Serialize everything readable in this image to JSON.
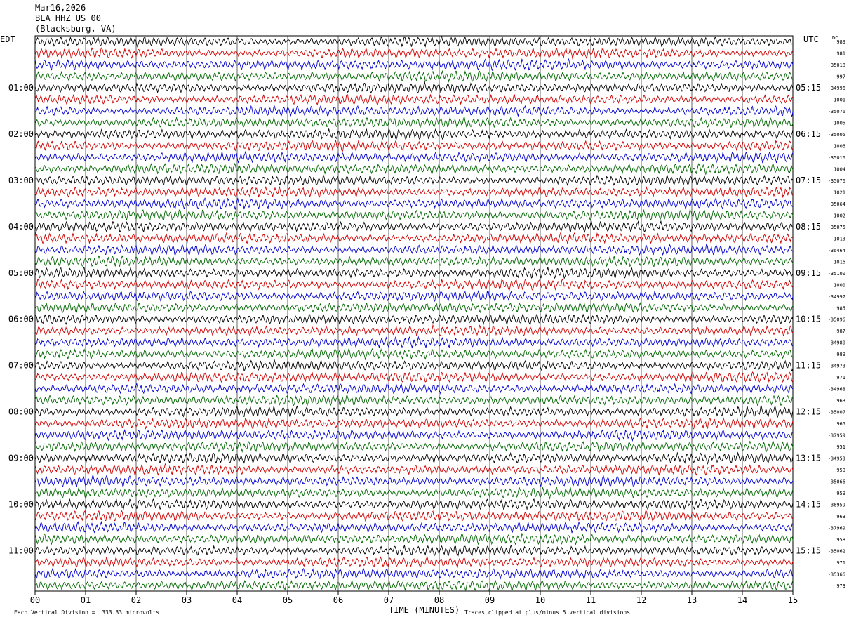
{
  "header": {
    "date": "Mar16,2026",
    "station": "BLA HHZ US 00",
    "location": "(Blacksburg, VA)"
  },
  "left_tz": "EDT",
  "right_tz": "UTC",
  "dc_label": "DC",
  "footer": {
    "division": "Each Vertical Division =  333.33 microvolts",
    "xlabel": "TIME (MINUTES)",
    "clip": "Traces clipped at plus/minus 5 vertical divisions"
  },
  "colors": {
    "trace_cycle": [
      "#000000",
      "#cc0000",
      "#0000cc",
      "#006600"
    ],
    "grid": "#000000"
  },
  "chart_data": {
    "type": "line",
    "title": "BLA HHZ US 00",
    "xlabel": "TIME (MINUTES)",
    "xlim": [
      0,
      15
    ],
    "x_ticks": [
      "00",
      "01",
      "02",
      "03",
      "04",
      "05",
      "06",
      "07",
      "08",
      "09",
      "10",
      "11",
      "12",
      "13",
      "14",
      "15"
    ],
    "rows_per_hour": 4,
    "row_count": 48,
    "left_hour_labels": [
      "01:00",
      "02:00",
      "03:00",
      "04:00",
      "05:00",
      "06:00",
      "07:00",
      "08:00",
      "09:00",
      "10:00",
      "11:00"
    ],
    "right_hour_labels": [
      "05:15",
      "06:15",
      "07:15",
      "08:15",
      "09:15",
      "10:15",
      "11:15",
      "12:15",
      "13:15",
      "14:15",
      "15:15"
    ],
    "dc_offsets": [
      "989",
      "981",
      "-35018",
      "997",
      "-34996",
      "1001",
      "-35076",
      "1005",
      "-35005",
      "1006",
      "-35016",
      "1004",
      "-35076",
      "1021",
      "-35064",
      "1002",
      "-35075",
      "1013",
      "-36464",
      "1016",
      "-35100",
      "1000",
      "-34997",
      "985",
      "-35096",
      "987",
      "-34980",
      "989",
      "-34973",
      "971",
      "-34968",
      "963",
      "-35007",
      "965",
      "-37959",
      "951",
      "-34953",
      "950",
      "-35066",
      "959",
      "-36959",
      "963",
      "-37969",
      "958",
      "-35062",
      "971",
      "-35366",
      "973"
    ],
    "grid": true
  }
}
